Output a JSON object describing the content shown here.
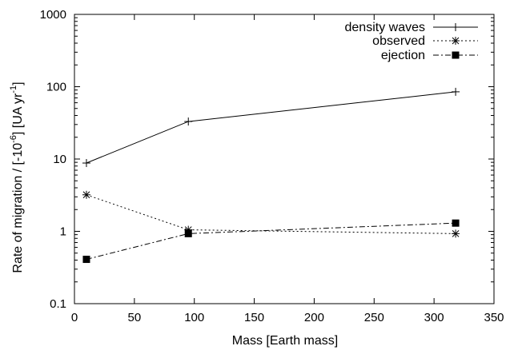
{
  "chart_data": {
    "type": "line",
    "xlabel": "Mass [Earth mass]",
    "ylabel": {
      "base": "Rate of migration / [-10",
      "base_exp": "-6",
      "mid": "] [UA yr",
      "mid_exp": "-1",
      "end": "]"
    },
    "xlim": [
      0,
      350
    ],
    "ylim": [
      0.1,
      1000
    ],
    "yscale": "log",
    "x_ticks": [
      0,
      50,
      100,
      150,
      200,
      250,
      300,
      350
    ],
    "y_ticks": [
      0.1,
      1,
      10,
      100,
      1000
    ],
    "x_tick_labels": [
      "0",
      "50",
      "100",
      "150",
      "200",
      "250",
      "300",
      "350"
    ],
    "y_tick_labels": [
      "0.1",
      "1",
      "10",
      "100",
      "1000"
    ],
    "grid": false,
    "legend_position": "top-right",
    "series": [
      {
        "name": "density waves",
        "marker": "plus",
        "line_style": "solid",
        "color": "#000000",
        "points": [
          [
            10,
            8.8
          ],
          [
            95,
            33
          ],
          [
            318,
            85
          ]
        ]
      },
      {
        "name": "observed",
        "marker": "star",
        "line_style": "dotted",
        "color": "#000000",
        "points": [
          [
            10,
            3.2
          ],
          [
            95,
            1.05
          ],
          [
            318,
            0.93
          ]
        ]
      },
      {
        "name": "ejection",
        "marker": "square",
        "line_style": "dashdot",
        "color": "#000000",
        "points": [
          [
            10,
            0.41
          ],
          [
            95,
            0.93
          ],
          [
            318,
            1.3
          ]
        ]
      }
    ]
  }
}
